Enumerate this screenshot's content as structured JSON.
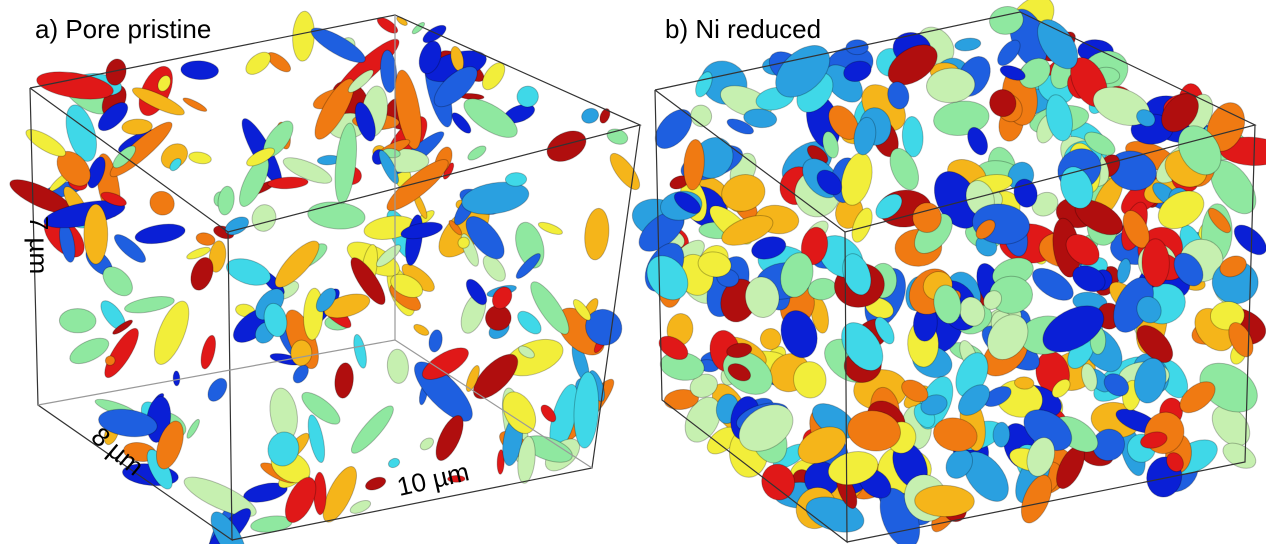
{
  "panels": [
    {
      "title": "a) Pore pristine",
      "axes": {
        "height": "7 µm",
        "depth": "8 µm",
        "width": "10 µm"
      }
    },
    {
      "title": "b) Ni reduced"
    }
  ]
}
